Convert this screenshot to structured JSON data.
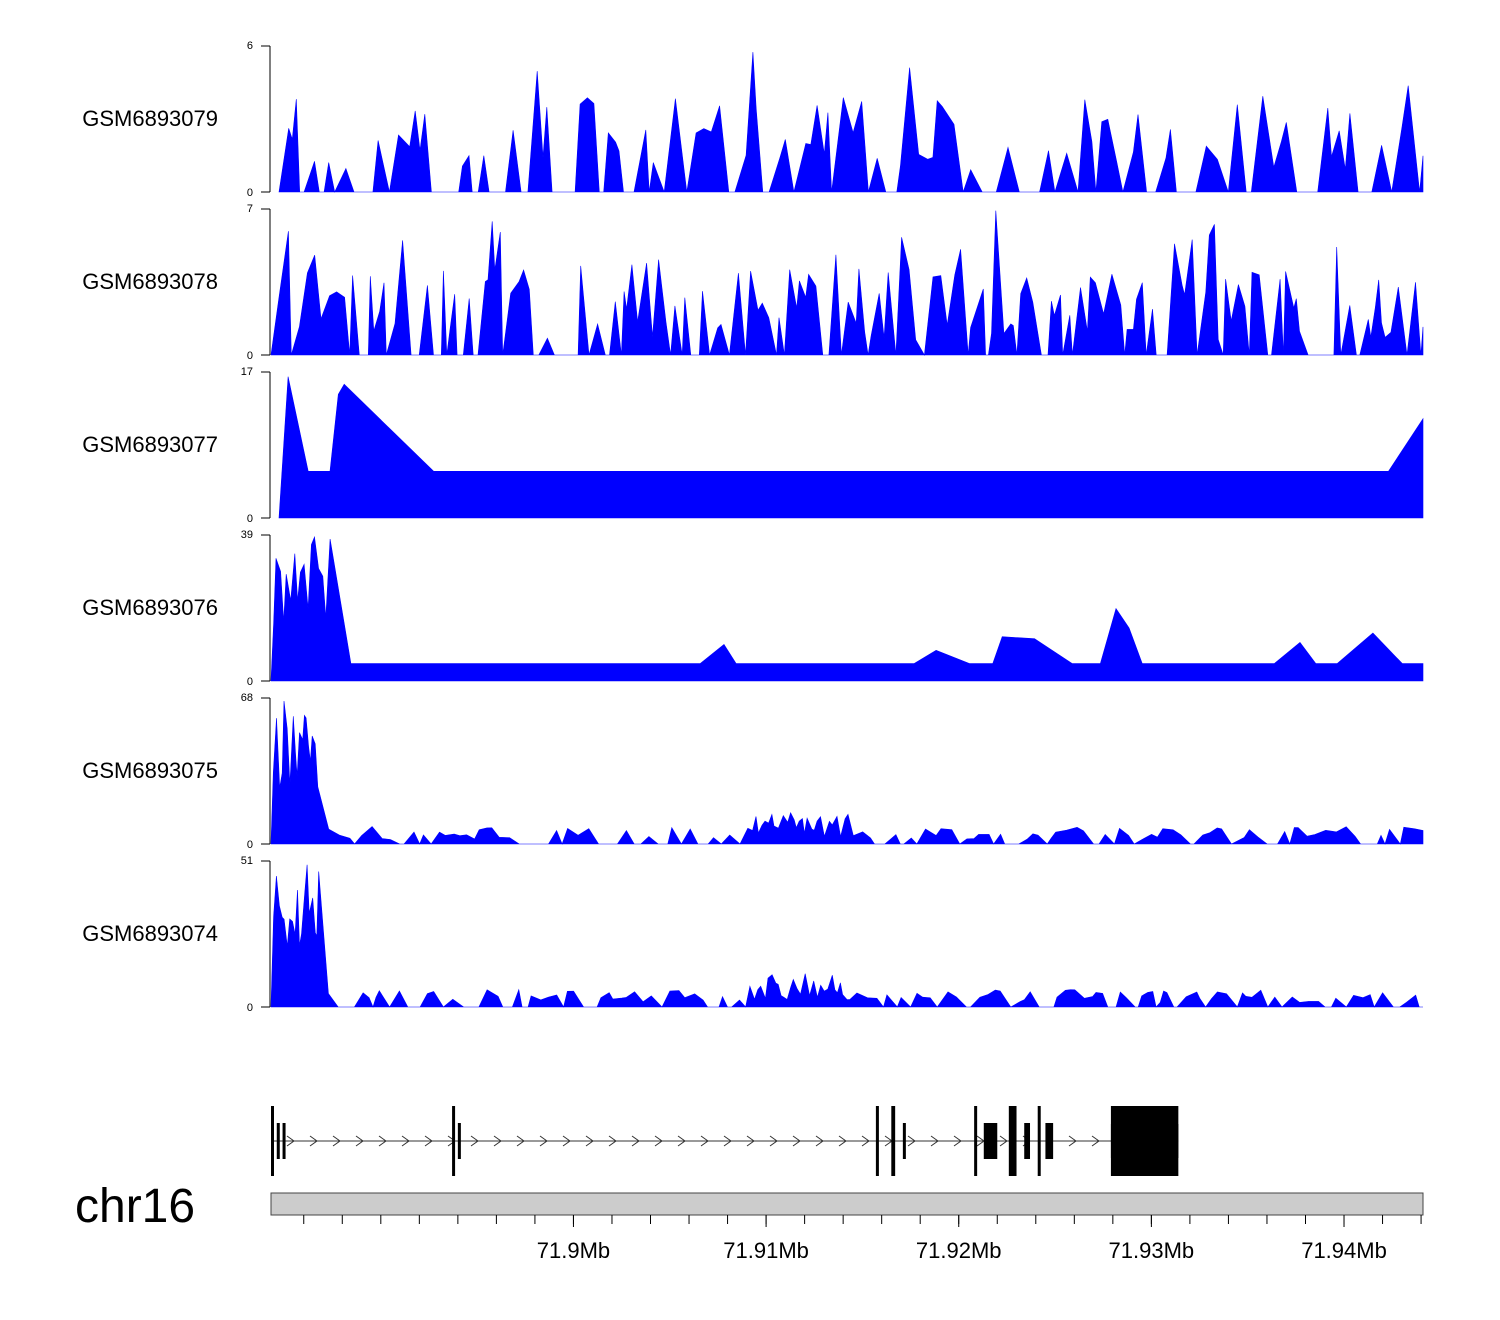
{
  "colors": {
    "signal": "#0000ff",
    "ideogram": "#cccccc",
    "gene": "#000000"
  },
  "chart_data": {
    "type": "area",
    "chromosome": "chr16",
    "x_range_mb": [
      71.8843,
      71.9441
    ],
    "tracks": [
      {
        "name": "GSM6893079",
        "ymax": 6,
        "ymin": 0,
        "profile": "sparse",
        "seed": 79
      },
      {
        "name": "GSM6893078",
        "ymax": 7,
        "ymin": 0,
        "profile": "sparse-dense",
        "seed": 78
      },
      {
        "name": "GSM6893077",
        "ymax": 17,
        "ymin": 0,
        "profile": "triangles",
        "seed": 77
      },
      {
        "name": "GSM6893076",
        "ymax": 39,
        "ymin": 0,
        "profile": "left-heavy",
        "seed": 76
      },
      {
        "name": "GSM6893075",
        "ymax": 68,
        "ymin": 0,
        "profile": "left-heavy-dense",
        "seed": 75
      },
      {
        "name": "GSM6893074",
        "ymax": 51,
        "ymin": 0,
        "profile": "left-heavy-dense",
        "seed": 74
      }
    ],
    "genome_axis": {
      "ticks_mb": [
        71.9,
        71.91,
        71.92,
        71.93,
        71.94
      ],
      "tick_labels": [
        "71.9Mb",
        "71.91Mb",
        "71.92Mb",
        "71.93Mb",
        "71.94Mb"
      ],
      "minor_step_mb": 0.002
    },
    "gene_model": {
      "strand": "+",
      "start_mb": 71.8843,
      "end_mb": 71.9314,
      "exons_mb": [
        [
          71.8843,
          71.8844
        ],
        [
          71.8846,
          71.8847
        ],
        [
          71.8849,
          71.885
        ],
        [
          71.8937,
          71.8938
        ],
        [
          71.894,
          71.8941
        ],
        [
          71.9157,
          71.9158
        ],
        [
          71.9165,
          71.9167
        ],
        [
          71.9171,
          71.9172
        ],
        [
          71.9208,
          71.9209
        ],
        [
          71.9213,
          71.922
        ],
        [
          71.9226,
          71.923
        ],
        [
          71.9234,
          71.9237
        ],
        [
          71.9241,
          71.9242
        ],
        [
          71.9245,
          71.9249
        ],
        [
          71.9279,
          71.9314
        ]
      ]
    }
  }
}
